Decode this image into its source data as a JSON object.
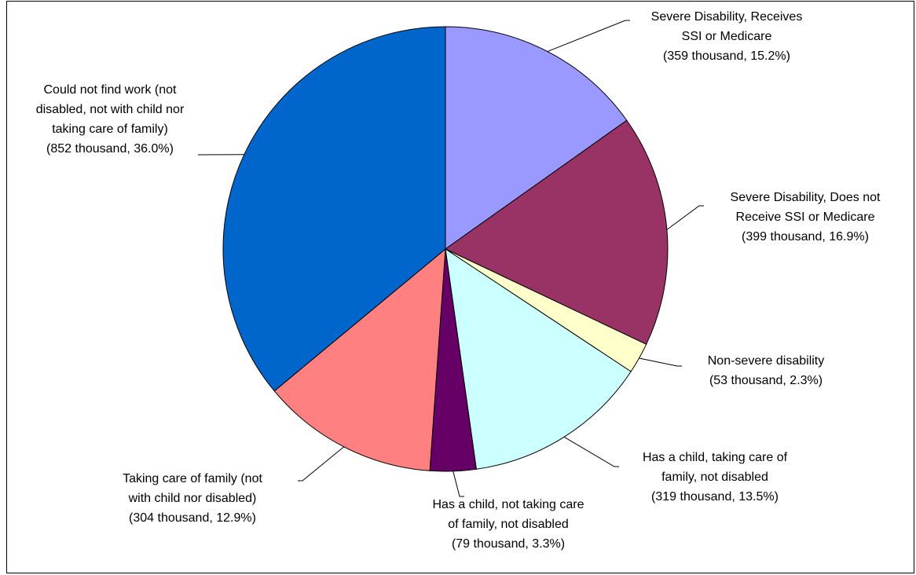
{
  "chart_data": {
    "type": "pie",
    "categories": [
      [
        "Severe Disability, Receives",
        "SSI  or Medicare"
      ],
      [
        "Severe Disability, Does not",
        "Receive SSI or Medicare"
      ],
      [
        "Non-severe disability"
      ],
      [
        "Has a child, taking care of",
        "family, not disabled"
      ],
      [
        "Has a child, not taking care",
        "of family, not disabled"
      ],
      [
        "Taking care of family (not",
        "with child nor disabled)"
      ],
      [
        "Could not find work (not",
        "disabled, not with child nor",
        "taking care of family)"
      ]
    ],
    "values": [
      359,
      399,
      53,
      319,
      79,
      304,
      852
    ],
    "value_labels": [
      "(359 thousand, 15.2%)",
      "(399 thousand, 16.9%)",
      "(53 thousand, 2.3%)",
      "(319 thousand, 13.5%)",
      "(79 thousand, 3.3%)",
      "(304 thousand, 12.9%)",
      "(852 thousand, 36.0%)"
    ],
    "colors": [
      "#9999ff",
      "#993366",
      "#ffffcc",
      "#ccffff",
      "#660066",
      "#ff8080",
      "#0066cc"
    ]
  }
}
